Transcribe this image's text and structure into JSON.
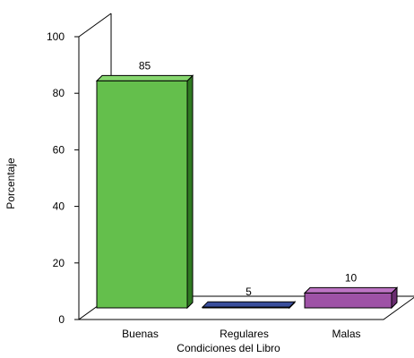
{
  "chart_data": {
    "type": "bar",
    "categories": [
      "Buenas",
      "Regulares",
      "Malas"
    ],
    "values": [
      85,
      5,
      10
    ],
    "data_labels": [
      "85",
      "5",
      "10"
    ],
    "xlabel": "Condiciones del Libro",
    "ylabel": "Porcentaje",
    "ylim": [
      0,
      100
    ],
    "y_ticks": [
      0,
      20,
      40,
      60,
      80,
      100
    ],
    "y_tick_labels": [
      "0",
      "20",
      "40",
      "60",
      "80",
      "100"
    ],
    "style": "3d",
    "grid": false,
    "legend": "none",
    "colors": {
      "Buenas": {
        "front": "#64bf4c",
        "top": "#86d66e",
        "side": "#2f7a22"
      },
      "Regulares": {
        "front": "#26387c",
        "top": "#3a4e9c",
        "side": "#141f4e"
      },
      "Malas": {
        "front": "#9e52a6",
        "top": "#bd74c4",
        "side": "#6a2d70"
      }
    }
  }
}
